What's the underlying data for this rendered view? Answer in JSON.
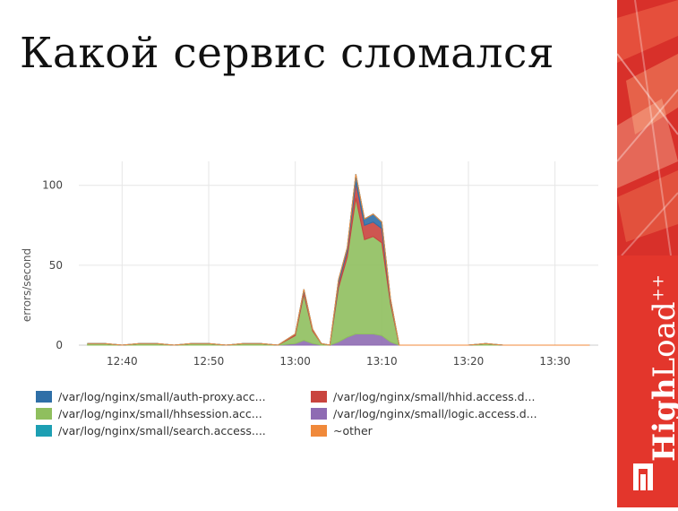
{
  "slide": {
    "title": "Какой сервис сломался"
  },
  "brand": {
    "name_bold": "High",
    "name_light": "Load",
    "suffix": "++",
    "colors": {
      "strip": "#e3362c",
      "accent": "#c82a22"
    },
    "logo_icon": "highload-logo-icon"
  },
  "chart_data": {
    "type": "area",
    "stacked": true,
    "ylabel": "errors/second",
    "xlabel": "",
    "ylim": [
      0,
      115
    ],
    "yticks": [
      0,
      50,
      100
    ],
    "xticks": [
      "12:40",
      "12:50",
      "13:00",
      "13:10",
      "13:20",
      "13:30"
    ],
    "grid": true,
    "legend_position": "bottom",
    "x": [
      "12:36",
      "12:38",
      "12:40",
      "12:42",
      "12:44",
      "12:46",
      "12:48",
      "12:50",
      "12:52",
      "12:54",
      "12:56",
      "12:58",
      "13:00",
      "13:01",
      "13:02",
      "13:03",
      "13:04",
      "13:05",
      "13:06",
      "13:07",
      "13:08",
      "13:09",
      "13:10",
      "13:11",
      "13:12",
      "13:14",
      "13:16",
      "13:18",
      "13:20",
      "13:22",
      "13:24",
      "13:26",
      "13:28",
      "13:30",
      "13:32",
      "13:34"
    ],
    "series": [
      {
        "name": "/var/log/nginx/small/logic.access.d...",
        "color": "#8e6bb3",
        "values": [
          0,
          0,
          0,
          0,
          0,
          0,
          0,
          0,
          0,
          0,
          0,
          0,
          1,
          3,
          1,
          0,
          0,
          2,
          5,
          7,
          7,
          7,
          6,
          2,
          0,
          0,
          0,
          0,
          0,
          0,
          0,
          0,
          0,
          0,
          0,
          0
        ]
      },
      {
        "name": "/var/log/nginx/small/hhsession.acc...",
        "color": "#8fbf5e",
        "values": [
          1,
          1,
          0,
          1,
          1,
          0,
          1,
          1,
          0,
          1,
          1,
          0,
          5,
          29,
          8,
          1,
          0,
          34,
          50,
          85,
          59,
          61,
          58,
          24,
          0,
          0,
          0,
          0,
          0,
          1,
          0,
          0,
          0,
          0,
          0,
          0
        ]
      },
      {
        "name": "/var/log/nginx/small/hhid.access.d...",
        "color": "#c9443e",
        "values": [
          0,
          0,
          0,
          0,
          0,
          0,
          0,
          0,
          0,
          0,
          0,
          0,
          1,
          2,
          1,
          0,
          0,
          3,
          4,
          10,
          9,
          9,
          9,
          2,
          0,
          0,
          0,
          0,
          0,
          0,
          0,
          0,
          0,
          0,
          0,
          0
        ]
      },
      {
        "name": "/var/log/nginx/small/auth-proxy.acc...",
        "color": "#2f6fa7",
        "values": [
          0,
          0,
          0,
          0,
          0,
          0,
          0,
          0,
          0,
          0,
          0,
          0,
          0,
          1,
          0,
          0,
          0,
          2,
          2,
          5,
          4,
          5,
          4,
          1,
          0,
          0,
          0,
          0,
          0,
          0,
          0,
          0,
          0,
          0,
          0,
          0
        ]
      },
      {
        "name": "/var/log/nginx/small/search.access....",
        "color": "#1d9fb3",
        "values": [
          0,
          0,
          0,
          0,
          0,
          0,
          0,
          0,
          0,
          0,
          0,
          0,
          0,
          0,
          0,
          0,
          0,
          0,
          0,
          0,
          0,
          0,
          0,
          0,
          0,
          0,
          0,
          0,
          0,
          0,
          0,
          0,
          0,
          0,
          0,
          0
        ]
      },
      {
        "name": "~other",
        "color": "#f0893a",
        "values": [
          0,
          0,
          0,
          0,
          0,
          0,
          0,
          0,
          0,
          0,
          0,
          0,
          0,
          0,
          0,
          0,
          0,
          0,
          0,
          0,
          0,
          0,
          0,
          0,
          0,
          0,
          0,
          0,
          0,
          0,
          0,
          0,
          0,
          0,
          0,
          0
        ]
      }
    ],
    "legend": [
      {
        "name": "/var/log/nginx/small/auth-proxy.acc...",
        "color": "#2f6fa7"
      },
      {
        "name": "/var/log/nginx/small/hhid.access.d...",
        "color": "#c9443e"
      },
      {
        "name": "/var/log/nginx/small/hhsession.acc...",
        "color": "#8fbf5e"
      },
      {
        "name": "/var/log/nginx/small/logic.access.d...",
        "color": "#8e6bb3"
      },
      {
        "name": "/var/log/nginx/small/search.access....",
        "color": "#1d9fb3"
      },
      {
        "name": "~other",
        "color": "#f0893a"
      }
    ]
  }
}
